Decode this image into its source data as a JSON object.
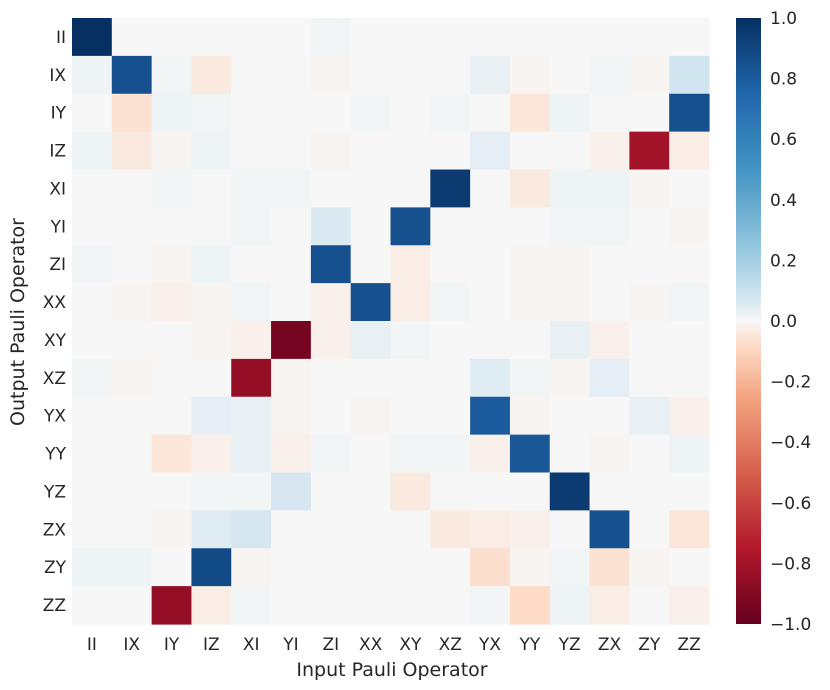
{
  "chart_data": {
    "type": "heatmap",
    "title": "",
    "xlabel": "Input Pauli Operator",
    "ylabel": "Output Pauli Operator",
    "x_categories": [
      "II",
      "IX",
      "IY",
      "IZ",
      "XI",
      "YI",
      "ZI",
      "XX",
      "XY",
      "XZ",
      "YX",
      "YY",
      "YZ",
      "ZX",
      "ZY",
      "ZZ"
    ],
    "y_categories": [
      "II",
      "IX",
      "IY",
      "IZ",
      "XI",
      "YI",
      "ZI",
      "XX",
      "XY",
      "XZ",
      "YX",
      "YY",
      "YZ",
      "ZX",
      "ZY",
      "ZZ"
    ],
    "colorscale": "RdBu (red = -1, white = 0, blue = 1)",
    "zlim": [
      -1.0,
      1.0
    ],
    "colorbar_ticks": [
      "1.0",
      "0.8",
      "0.6",
      "0.4",
      "0.2",
      "0.0",
      "−0.2",
      "−0.4",
      "−0.6",
      "−0.8",
      "−1.0"
    ],
    "colorbar_tick_values": [
      1.0,
      0.8,
      0.6,
      0.4,
      0.2,
      0.0,
      -0.2,
      -0.4,
      -0.6,
      -0.8,
      -1.0
    ],
    "values": [
      [
        1.0,
        0.0,
        0.0,
        0.0,
        0.0,
        0.0,
        0.01,
        0.0,
        0.0,
        0.0,
        0.0,
        0.0,
        0.0,
        0.0,
        0.0,
        0.0
      ],
      [
        0.02,
        0.85,
        0.01,
        -0.04,
        0.0,
        0.0,
        -0.01,
        0.0,
        0.0,
        0.0,
        0.03,
        -0.01,
        0.0,
        0.01,
        -0.01,
        0.08
      ],
      [
        0.0,
        -0.06,
        0.02,
        0.01,
        0.0,
        0.0,
        0.0,
        0.01,
        0.0,
        0.01,
        0.0,
        -0.05,
        0.02,
        0.0,
        0.0,
        0.85
      ],
      [
        0.02,
        -0.04,
        -0.01,
        0.02,
        0.0,
        0.0,
        -0.01,
        0.0,
        0.0,
        0.0,
        0.04,
        0.0,
        0.0,
        -0.02,
        -0.8,
        -0.03
      ],
      [
        0.0,
        0.0,
        0.01,
        0.0,
        0.01,
        0.01,
        0.0,
        0.0,
        0.0,
        0.95,
        0.0,
        -0.04,
        0.02,
        0.02,
        -0.01,
        0.0
      ],
      [
        0.0,
        0.0,
        0.0,
        0.0,
        0.01,
        0.0,
        0.06,
        0.0,
        0.85,
        0.0,
        0.0,
        0.0,
        0.01,
        0.01,
        0.0,
        -0.01
      ],
      [
        0.01,
        0.0,
        -0.01,
        0.02,
        0.0,
        0.0,
        0.85,
        0.0,
        -0.03,
        0.0,
        0.0,
        -0.01,
        -0.01,
        0.0,
        0.0,
        0.0
      ],
      [
        0.0,
        -0.01,
        -0.02,
        -0.01,
        0.01,
        0.0,
        -0.02,
        0.85,
        -0.03,
        0.01,
        0.0,
        -0.01,
        -0.01,
        0.0,
        -0.01,
        0.01
      ],
      [
        0.0,
        0.0,
        0.0,
        -0.01,
        -0.02,
        -0.95,
        -0.02,
        0.03,
        0.01,
        0.0,
        0.0,
        0.0,
        0.03,
        -0.02,
        0.0,
        0.0
      ],
      [
        0.01,
        -0.01,
        0.0,
        0.0,
        -0.85,
        -0.01,
        0.0,
        0.0,
        0.0,
        0.0,
        0.05,
        0.01,
        -0.01,
        0.04,
        0.0,
        0.0
      ],
      [
        0.0,
        0.0,
        0.0,
        0.04,
        0.03,
        -0.01,
        0.0,
        -0.01,
        0.0,
        0.0,
        0.8,
        -0.01,
        0.0,
        0.0,
        0.03,
        -0.02
      ],
      [
        0.0,
        0.0,
        -0.05,
        -0.02,
        0.03,
        -0.02,
        0.01,
        0.0,
        0.01,
        0.01,
        -0.02,
        0.82,
        0.0,
        -0.01,
        0.0,
        0.02
      ],
      [
        0.0,
        0.0,
        0.0,
        0.01,
        0.01,
        0.07,
        0.0,
        0.0,
        -0.04,
        0.0,
        0.0,
        0.0,
        0.95,
        0.0,
        0.0,
        0.0
      ],
      [
        0.0,
        0.0,
        -0.01,
        0.05,
        0.07,
        0.0,
        0.0,
        0.0,
        0.0,
        -0.04,
        -0.03,
        -0.02,
        0.0,
        0.85,
        0.0,
        -0.05
      ],
      [
        0.02,
        0.02,
        0.0,
        0.88,
        -0.01,
        0.0,
        0.0,
        0.0,
        0.0,
        0.0,
        -0.07,
        -0.01,
        0.01,
        -0.06,
        -0.01,
        0.0
      ],
      [
        0.0,
        0.0,
        -0.85,
        -0.03,
        0.01,
        0.0,
        0.0,
        0.0,
        0.0,
        0.0,
        0.01,
        -0.08,
        0.02,
        -0.03,
        0.0,
        -0.02
      ]
    ]
  }
}
